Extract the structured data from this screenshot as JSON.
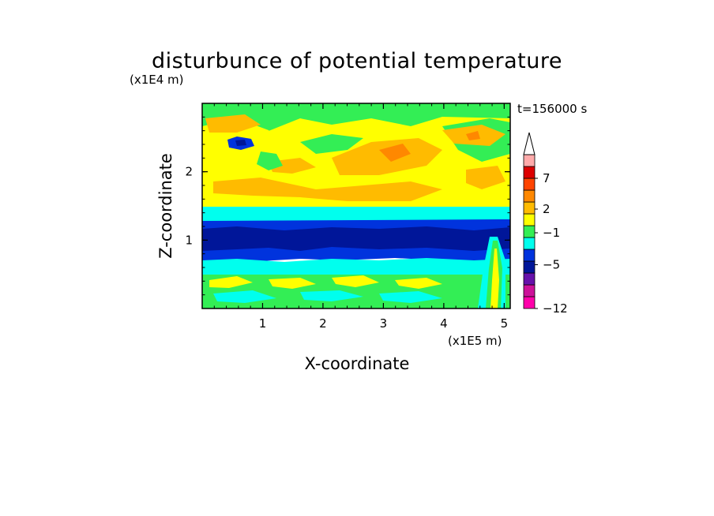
{
  "chart_data": {
    "type": "heatmap",
    "title": "disturbunce of potential temperature",
    "time_label": "t=156000 s",
    "xlabel": "X-coordinate",
    "ylabel": "Z-coordinate",
    "x_unit": "(x1E5 m)",
    "y_unit": "(x1E4 m)",
    "x_ticks": [
      "1",
      "2",
      "3",
      "4",
      "5"
    ],
    "x_tick_values": [
      1,
      2,
      3,
      4,
      5
    ],
    "y_ticks": [
      "1",
      "2"
    ],
    "y_tick_values": [
      1,
      2
    ],
    "xlim": [
      0,
      5.1
    ],
    "ylim": [
      0,
      3.0
    ],
    "colorbar": {
      "tick_labels": [
        "7",
        "2",
        "−1",
        "−5",
        "−12"
      ],
      "tick_values": [
        7,
        2,
        -1,
        -5,
        -12
      ],
      "colors": [
        "#ff00aa",
        "#cc1199",
        "#6611aa",
        "#001699",
        "#0033dd",
        "#00ffee",
        "#33ee55",
        "#ffff00",
        "#ffbb00",
        "#ff8800",
        "#ff4400",
        "#dd0000",
        "#ffaaaa"
      ],
      "extend_max": true
    },
    "layers": [
      {
        "level": "green-lower",
        "color": "#33ee55",
        "z_range": [
          0.0,
          0.45
        ]
      },
      {
        "level": "cyan-lower",
        "color": "#00ffee",
        "z_range": [
          0.45,
          0.82
        ]
      },
      {
        "level": "blue",
        "color": "#0033dd",
        "z_range": [
          0.82,
          1.28
        ]
      },
      {
        "level": "dark-blue",
        "color": "#001699",
        "z_range": [
          0.9,
          1.15
        ]
      },
      {
        "level": "cyan-upper",
        "color": "#00ffee",
        "z_range": [
          1.28,
          1.43
        ]
      },
      {
        "level": "yellow-upper",
        "color": "#ffff00",
        "z_range": [
          1.43,
          3.0
        ]
      }
    ]
  }
}
